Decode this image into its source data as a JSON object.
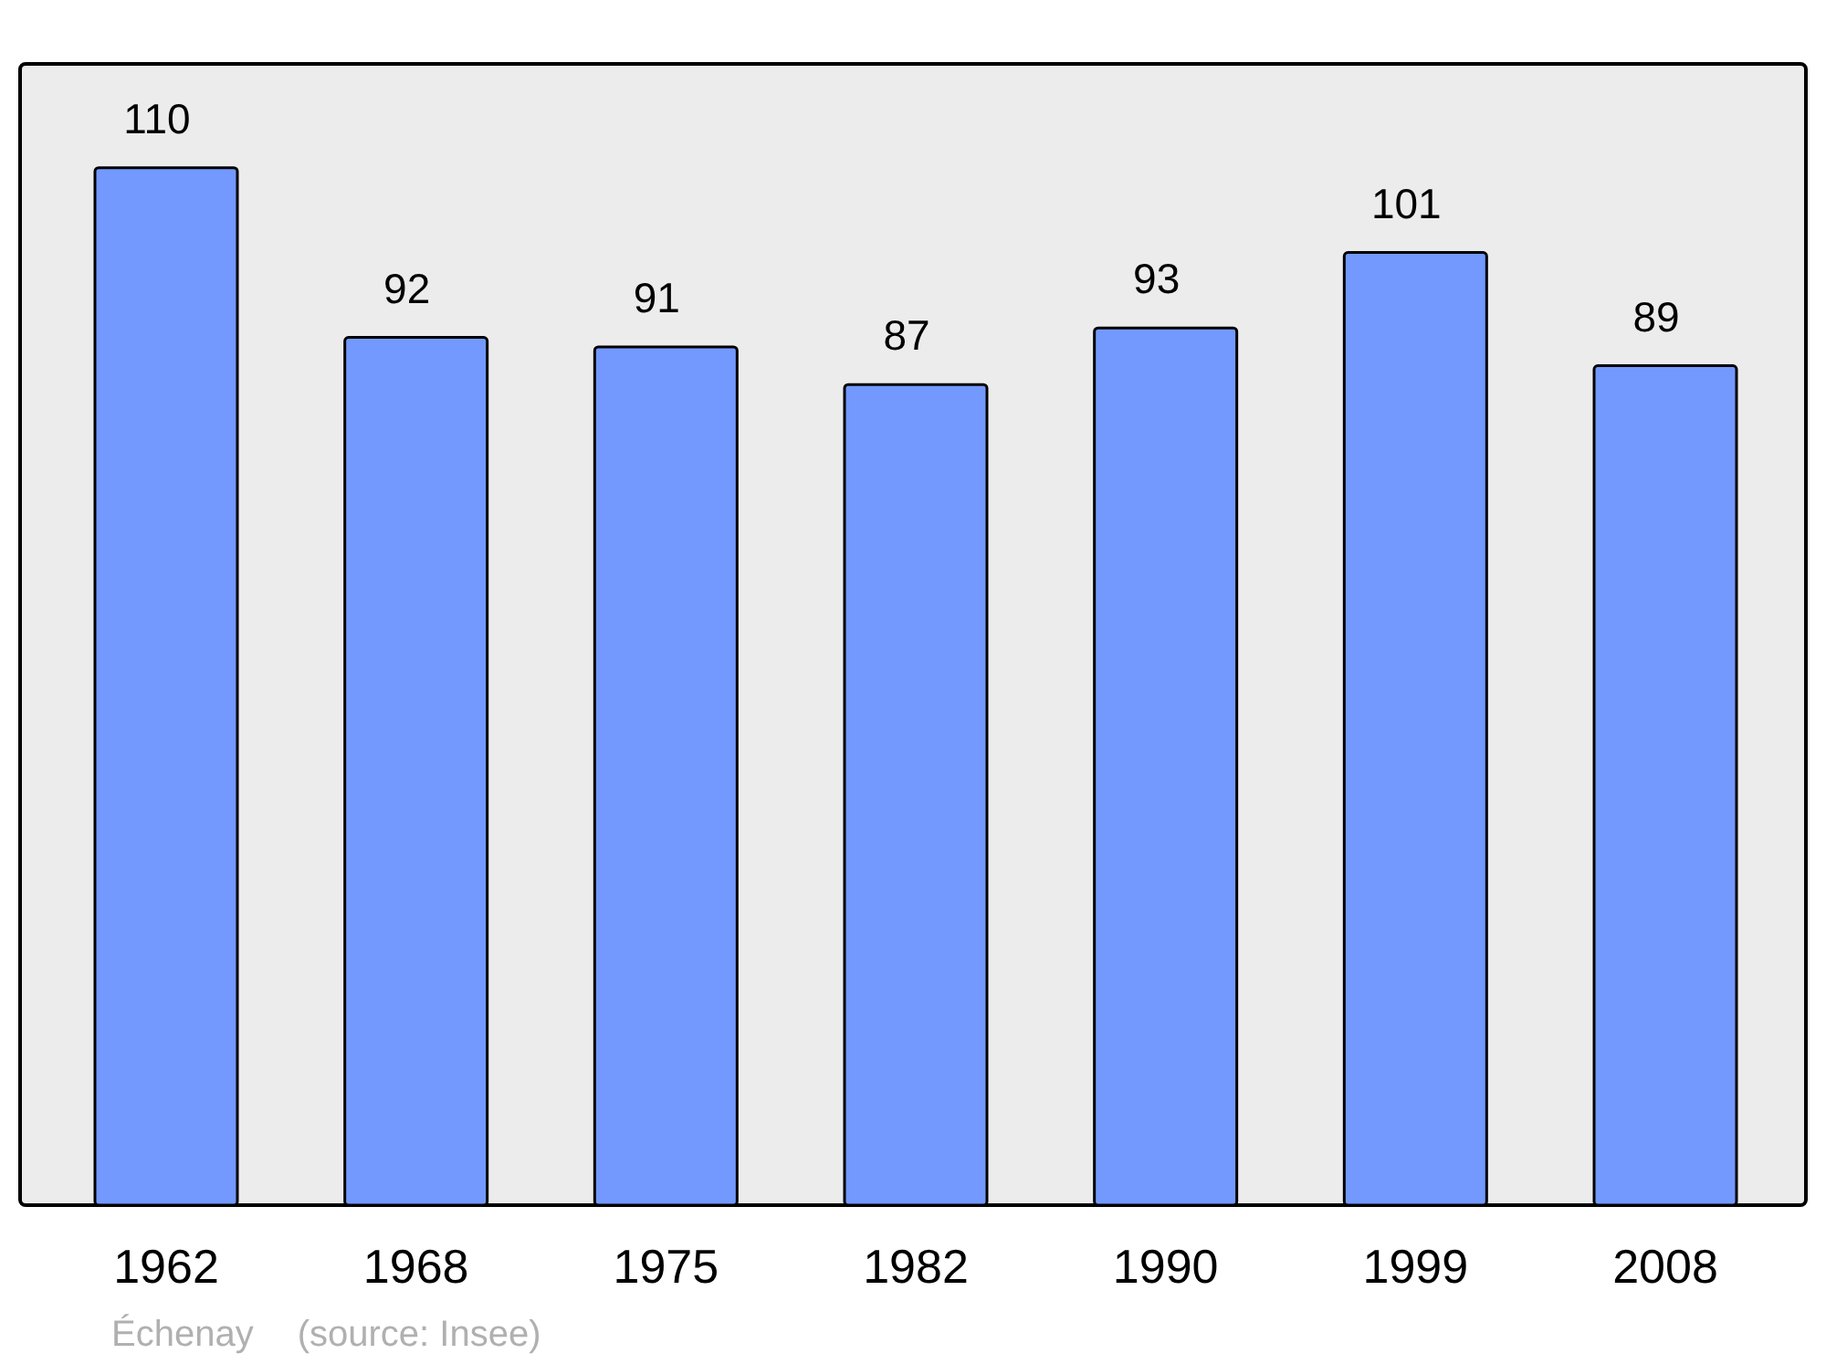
{
  "chart_data": {
    "type": "bar",
    "categories": [
      "1962",
      "1968",
      "1975",
      "1982",
      "1990",
      "1999",
      "2008"
    ],
    "values": [
      110,
      92,
      91,
      87,
      93,
      101,
      89
    ],
    "color": "#7399ff",
    "data_labels": true,
    "annotations": [
      "Échenay",
      "(source: Insee)"
    ]
  }
}
